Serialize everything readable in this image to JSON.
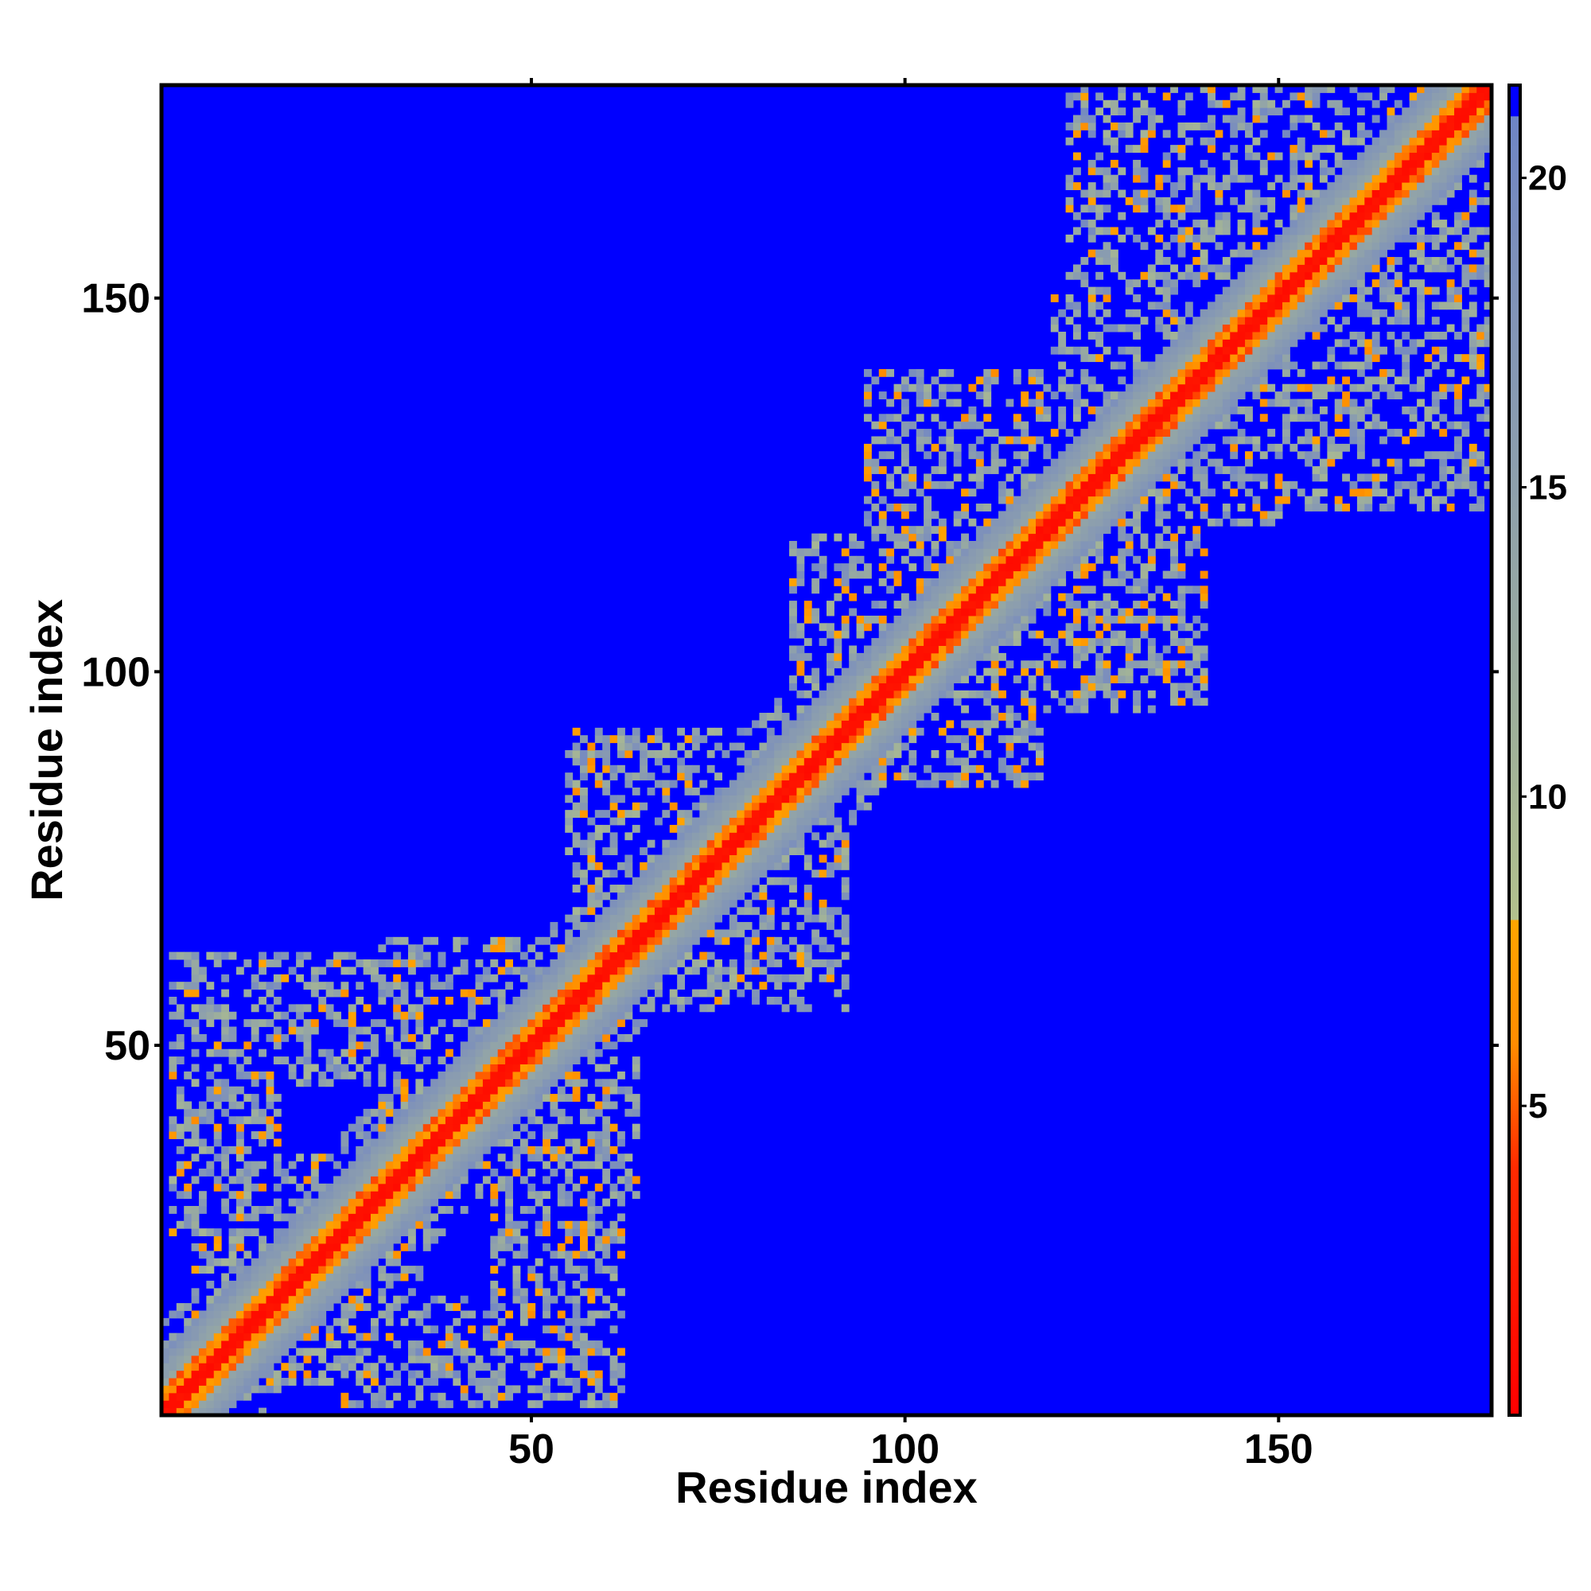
{
  "chart_data": {
    "type": "heatmap",
    "title": "",
    "xlabel": "Residue index",
    "ylabel": "Residue index",
    "n_residues": 178,
    "xlim": [
      1,
      178
    ],
    "ylim": [
      1,
      178
    ],
    "x_ticks": [
      50,
      100,
      150
    ],
    "x_tick_labels": [
      "50",
      "100",
      "150"
    ],
    "y_ticks": [
      50,
      100,
      150
    ],
    "y_tick_labels": [
      "50",
      "100",
      "150"
    ],
    "grid": false,
    "colorbar": {
      "position": "right",
      "min": 0,
      "max": 21.5,
      "ticks": [
        5,
        10,
        15,
        20
      ],
      "tick_labels": [
        "5",
        "10",
        "15",
        "20"
      ],
      "stops": [
        {
          "value": 0,
          "color": "#ff0000"
        },
        {
          "value": 4,
          "color": "#ff2a00"
        },
        {
          "value": 6,
          "color": "#ff8c00"
        },
        {
          "value": 8,
          "color": "#ffa500"
        },
        {
          "value": 8.01,
          "color": "#b3c18d"
        },
        {
          "value": 11,
          "color": "#9fb09a"
        },
        {
          "value": 15,
          "color": "#8ea0ac"
        },
        {
          "value": 19,
          "color": "#7c8fbc"
        },
        {
          "value": 20.99,
          "color": "#6e85c6"
        },
        {
          "value": 21,
          "color": "#0000ff"
        },
        {
          "value": 21.5,
          "color": "#0000ff"
        }
      ]
    },
    "value_description": "pairwise residue distance matrix (symmetric); cells beyond the cutoff are saturated blue",
    "diagonal_band": {
      "red_below_offset": 2,
      "orange_below_offset": 4,
      "halo_offset": 9
    },
    "contact_clusters": [
      {
        "x": [
          2,
          16
        ],
        "y": [
          30,
          45
        ]
      },
      {
        "x": [
          10,
          28
        ],
        "y": [
          5,
          35
        ]
      },
      {
        "x": [
          25,
          42
        ],
        "y": [
          2,
          14
        ]
      },
      {
        "x": [
          45,
          62
        ],
        "y": [
          2,
          32
        ]
      },
      {
        "x": [
          22,
          42
        ],
        "y": [
          45,
          62
        ]
      },
      {
        "x": [
          38,
          64
        ],
        "y": [
          30,
          58
        ]
      },
      {
        "x": [
          55,
          80
        ],
        "y": [
          68,
          90
        ]
      },
      {
        "x": [
          75,
          92
        ],
        "y": [
          55,
          78
        ]
      },
      {
        "x": [
          85,
          110
        ],
        "y": [
          85,
          118
        ]
      },
      {
        "x": [
          95,
          128
        ],
        "y": [
          128,
          140
        ]
      },
      {
        "x": [
          118,
          138
        ],
        "y": [
          95,
          125
        ]
      },
      {
        "x": [
          120,
          155
        ],
        "y": [
          122,
          150
        ]
      },
      {
        "x": [
          150,
          165
        ],
        "y": [
          122,
          155
        ]
      },
      {
        "x": [
          122,
          178
        ],
        "y": [
          152,
          178
        ]
      },
      {
        "x": [
          2,
          20
        ],
        "y": [
          45,
          58
        ]
      }
    ]
  }
}
